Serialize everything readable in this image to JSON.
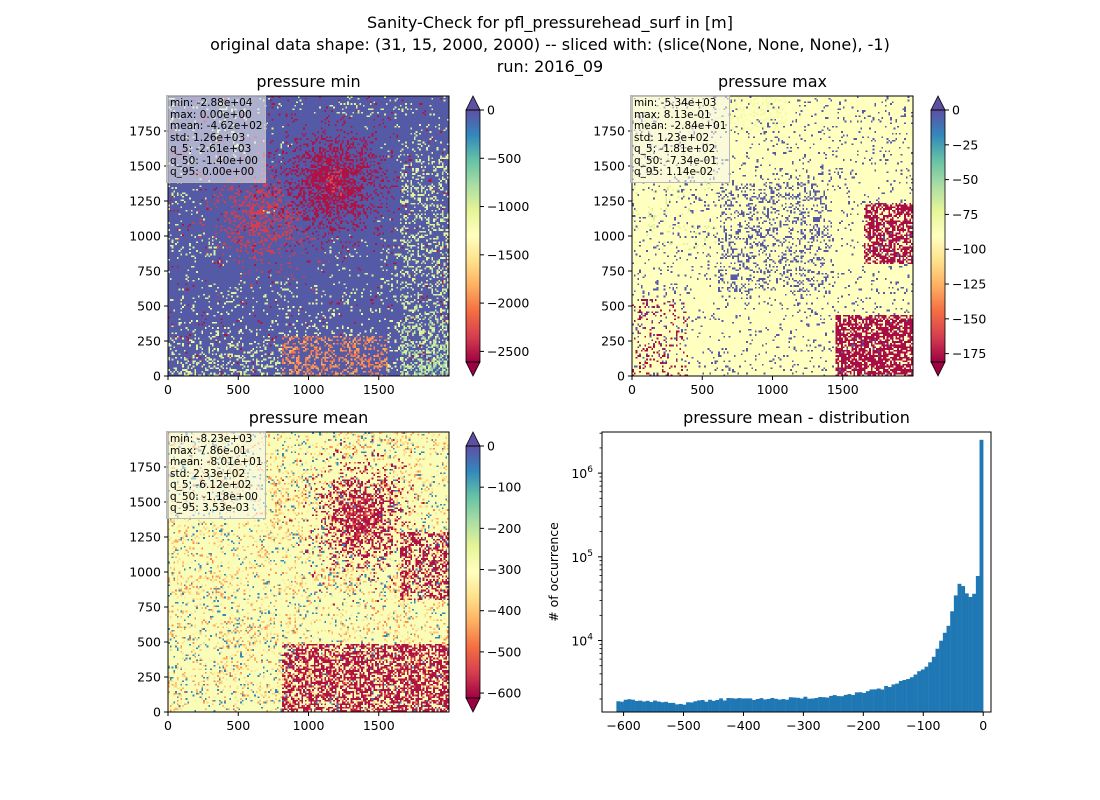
{
  "suptitle": [
    "Sanity-Check for pfl_pressurehead_surf in [m]",
    "original data shape: (31, 15, 2000, 2000) -- sliced with: (slice(None, None, None), -1)",
    "run: 2016_09"
  ],
  "colors": {
    "spectral": [
      "#9e0142",
      "#d53e4f",
      "#f46d43",
      "#fdae61",
      "#fee08b",
      "#ffffbf",
      "#e6f598",
      "#abdda4",
      "#66c2a5",
      "#3288bd",
      "#5e4fa2"
    ],
    "hist_bar": "#1f77b4"
  },
  "chart_data": [
    {
      "type": "heatmap",
      "title": "pressure min",
      "colormap": "Spectral",
      "x_ticks": [
        "0",
        "500",
        "1000",
        "1500"
      ],
      "y_ticks": [
        "0",
        "250",
        "500",
        "750",
        "1000",
        "1250",
        "1500",
        "1750"
      ],
      "xlim": [
        0,
        2000
      ],
      "ylim": [
        0,
        2000
      ],
      "colorbar": {
        "ticks": [
          "0",
          "−500",
          "−1000",
          "−1500",
          "−2000",
          "−2500"
        ],
        "range": [
          -2610,
          0
        ],
        "extend": "both"
      },
      "stats": [
        "min: -2.88e+04",
        "max: 0.00e+00",
        "mean: -4.62e+02",
        "std: 1.26e+03",
        "q_5: -2.61e+03",
        "q_50: -1.40e+00",
        "q_95: 0.00e+00"
      ]
    },
    {
      "type": "heatmap",
      "title": "pressure max",
      "colormap": "Spectral",
      "x_ticks": [
        "0",
        "500",
        "1000",
        "1500"
      ],
      "y_ticks": [
        "0",
        "250",
        "500",
        "750",
        "1000",
        "1250",
        "1500",
        "1750"
      ],
      "xlim": [
        0,
        2000
      ],
      "ylim": [
        0,
        2000
      ],
      "colorbar": {
        "ticks": [
          "0",
          "−25",
          "−50",
          "−75",
          "−100",
          "−125",
          "−150",
          "−175"
        ],
        "range": [
          -181,
          0
        ],
        "extend": "both"
      },
      "stats": [
        "min: -5.34e+03",
        "max: 8.13e-01",
        "mean: -2.84e+01",
        "std: 1.23e+02",
        "q_5: -1.81e+02",
        "q_50: -7.34e-01",
        "q_95: 1.14e-02"
      ]
    },
    {
      "type": "heatmap",
      "title": "pressure mean",
      "colormap": "Spectral",
      "x_ticks": [
        "0",
        "500",
        "1000",
        "1500"
      ],
      "y_ticks": [
        "0",
        "250",
        "500",
        "750",
        "1000",
        "1250",
        "1500",
        "1750"
      ],
      "xlim": [
        0,
        2000
      ],
      "ylim": [
        0,
        2000
      ],
      "colorbar": {
        "ticks": [
          "0",
          "−100",
          "−200",
          "−300",
          "−400",
          "−500",
          "−600"
        ],
        "range": [
          -612,
          0
        ],
        "extend": "both"
      },
      "stats": [
        "min: -8.23e+03",
        "max: 7.86e-01",
        "mean: -8.01e+01",
        "std: 2.33e+02",
        "q_5: -6.12e+02",
        "q_50: -1.18e+00",
        "q_95: 3.53e-03"
      ]
    },
    {
      "type": "bar",
      "title": "pressure mean - distribution",
      "ylabel": "# of occurrence",
      "xlabel": "",
      "y_scale": "log",
      "xlim": [
        -636,
        13
      ],
      "ylim": [
        1400,
        3100000
      ],
      "x_ticks": [
        "−600",
        "−500",
        "−400",
        "−300",
        "−200",
        "−100",
        "0"
      ],
      "y_ticks": [
        {
          "base": "10",
          "exp": "4",
          "value": 10000
        },
        {
          "base": "10",
          "exp": "5",
          "value": 100000
        },
        {
          "base": "10",
          "exp": "6",
          "value": 1000000
        }
      ],
      "bins": {
        "start": -612,
        "end": 0,
        "count": 100
      },
      "control_points": [
        {
          "x": -612,
          "y": 1850
        },
        {
          "x": -600,
          "y": 1950
        },
        {
          "x": -575,
          "y": 1950
        },
        {
          "x": -550,
          "y": 1880
        },
        {
          "x": -520,
          "y": 1800
        },
        {
          "x": -500,
          "y": 1760
        },
        {
          "x": -480,
          "y": 1860
        },
        {
          "x": -450,
          "y": 1980
        },
        {
          "x": -400,
          "y": 2020
        },
        {
          "x": -350,
          "y": 2000
        },
        {
          "x": -300,
          "y": 2050
        },
        {
          "x": -250,
          "y": 2150
        },
        {
          "x": -200,
          "y": 2400
        },
        {
          "x": -170,
          "y": 2650
        },
        {
          "x": -150,
          "y": 2950
        },
        {
          "x": -120,
          "y": 3700
        },
        {
          "x": -100,
          "y": 4600
        },
        {
          "x": -90,
          "y": 5500
        },
        {
          "x": -80,
          "y": 7000
        },
        {
          "x": -70,
          "y": 9800
        },
        {
          "x": -60,
          "y": 14000
        },
        {
          "x": -50,
          "y": 24000
        },
        {
          "x": -45,
          "y": 37000
        },
        {
          "x": -40,
          "y": 48000
        },
        {
          "x": -35,
          "y": 45000
        },
        {
          "x": -30,
          "y": 40000
        },
        {
          "x": -25,
          "y": 36000
        },
        {
          "x": -18,
          "y": 33000
        },
        {
          "x": -12,
          "y": 42000
        },
        {
          "x": -8,
          "y": 65000
        },
        {
          "x": -6,
          "y": 150000
        },
        {
          "x": 0,
          "y": 2500000
        }
      ]
    }
  ]
}
